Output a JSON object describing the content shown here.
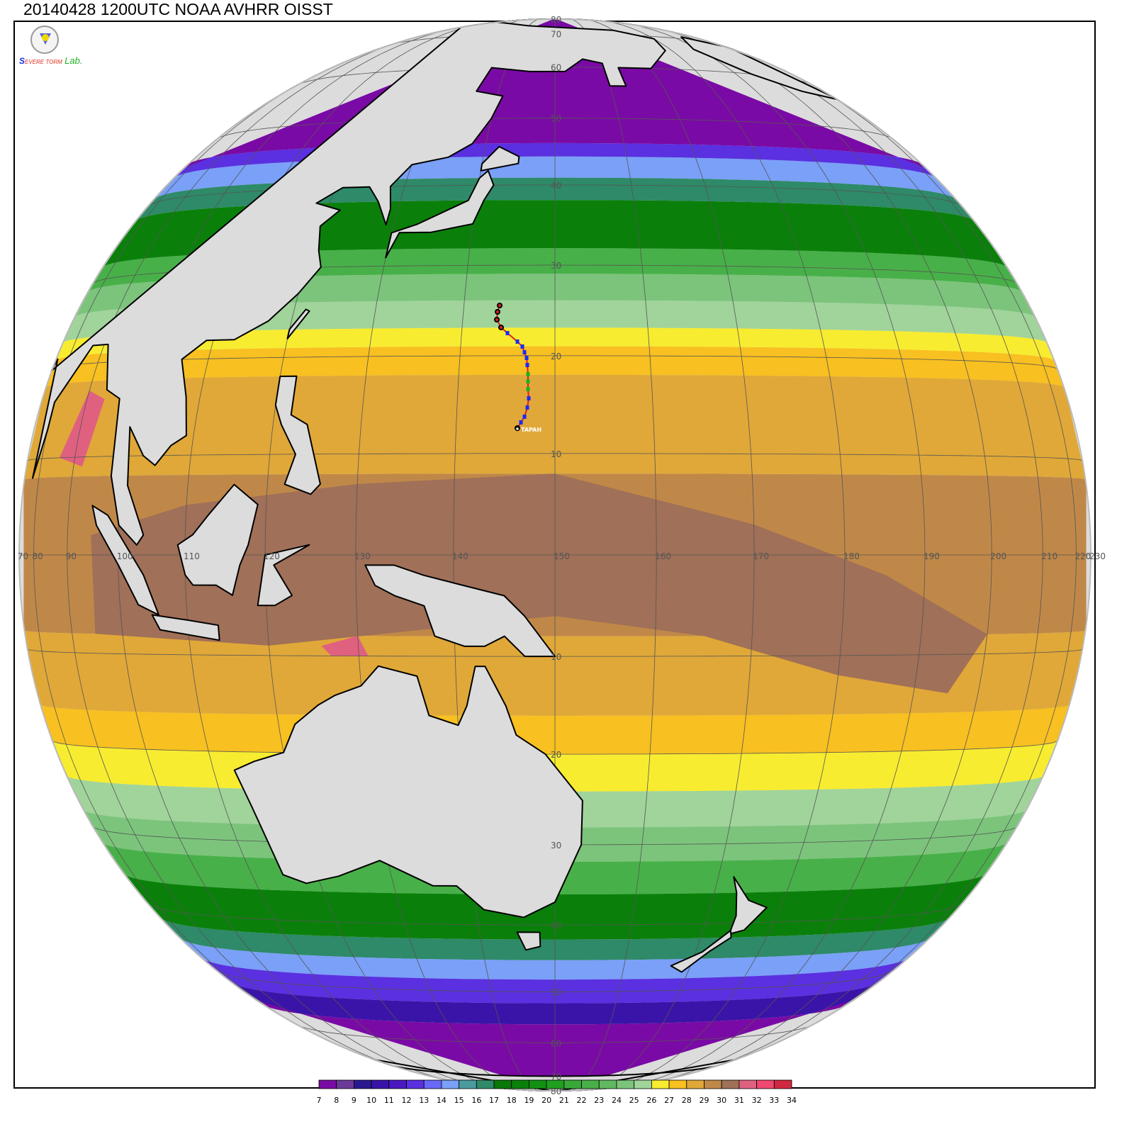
{
  "title": "20140428 1200UTC NOAA AVHRR OISST",
  "logo": {
    "text_s": "S",
    "text_severe_storm": "EVERE TORM",
    "text_lab": "Lab."
  },
  "storm": {
    "name": "TAPAH",
    "track_colors": {
      "line": "#e02020",
      "point": "#1a2aff",
      "point_alt": "#20b020",
      "old_point": "#000000"
    }
  },
  "map": {
    "projection": "globe centered on 0N 150E",
    "land_color": "#dcdcdc",
    "coastline_color": "#000000",
    "grid_color": "#555555",
    "lat_labels_north": [
      "80",
      "70",
      "60",
      "50",
      "40",
      "30",
      "20",
      "10"
    ],
    "lat_labels_south": [
      "10",
      "20",
      "30",
      "40",
      "50",
      "60",
      "70",
      "80"
    ],
    "lon_labels": [
      "70",
      "80",
      "90",
      "100",
      "110",
      "120",
      "130",
      "140",
      "150",
      "160",
      "170",
      "180",
      "190",
      "200",
      "210",
      "220",
      "230"
    ]
  },
  "colorbar": {
    "labels": [
      "7",
      "8",
      "9",
      "10",
      "11",
      "12",
      "13",
      "14",
      "15",
      "16",
      "17",
      "18",
      "19",
      "20",
      "21",
      "22",
      "23",
      "24",
      "25",
      "26",
      "27",
      "28",
      "29",
      "30",
      "31",
      "32",
      "33",
      "34"
    ],
    "colors": [
      "#7a0aa5",
      "#6b3a98",
      "#2a1890",
      "#3a14a8",
      "#4a18c0",
      "#5a30e0",
      "#6a68f8",
      "#7aa0f8",
      "#4a9aa0",
      "#2e8a68",
      "#087808",
      "#0a800a",
      "#129012",
      "#20a020",
      "#38a838",
      "#48b048",
      "#60b860",
      "#7cc47c",
      "#a0d49a",
      "#f8ec30",
      "#f8c020",
      "#e0a838",
      "#c08848",
      "#a07058",
      "#e06080",
      "#f04870",
      "#d02840"
    ]
  }
}
